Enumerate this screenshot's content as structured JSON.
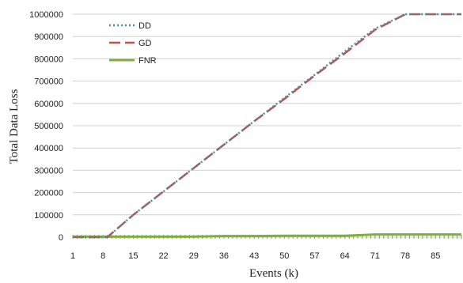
{
  "chart_data": {
    "type": "line",
    "xlabel": "Events  (k)",
    "ylabel": "Total Data Loss",
    "x_tick_labels": [
      "1",
      "8",
      "15",
      "22",
      "29",
      "36",
      "43",
      "50",
      "57",
      "64",
      "71",
      "78",
      "85"
    ],
    "y_tick_labels": [
      "0",
      "100000",
      "200000",
      "300000",
      "400000",
      "500000",
      "600000",
      "700000",
      "800000",
      "900000",
      "1000000"
    ],
    "xlim": [
      1,
      91
    ],
    "ylim": [
      0,
      1000000
    ],
    "grid": "horizontal",
    "legend_position": "top-left",
    "series": [
      {
        "name": "DD",
        "color": "#4a8fa3",
        "style": "dotted",
        "x": [
          1,
          8,
          9,
          15,
          22,
          29,
          36,
          43,
          50,
          57,
          64,
          71,
          78,
          85,
          91
        ],
        "y": [
          0,
          0,
          0,
          100000,
          205000,
          310000,
          415000,
          520000,
          625000,
          728000,
          833000,
          935000,
          1000000,
          1000000,
          1000000
        ],
        "note_visible_to_x": 9
      },
      {
        "name": "GD",
        "color": "#c0504d",
        "style": "dashed",
        "x": [
          1,
          8,
          9,
          15,
          22,
          29,
          36,
          43,
          50,
          57,
          64,
          71,
          78,
          85,
          91
        ],
        "y": [
          0,
          0,
          0,
          100000,
          205000,
          310000,
          415000,
          520000,
          620000,
          725000,
          825000,
          930000,
          1000000,
          1000000,
          1000000
        ]
      },
      {
        "name": "FNR",
        "color": "#7fae3e",
        "style": "solid",
        "x": [
          1,
          8,
          15,
          22,
          29,
          36,
          43,
          50,
          57,
          64,
          71,
          78,
          85,
          91
        ],
        "y": [
          2000,
          2000,
          2000,
          2000,
          2000,
          5000,
          5000,
          6000,
          6000,
          6000,
          12000,
          12000,
          12000,
          12000
        ]
      }
    ]
  }
}
